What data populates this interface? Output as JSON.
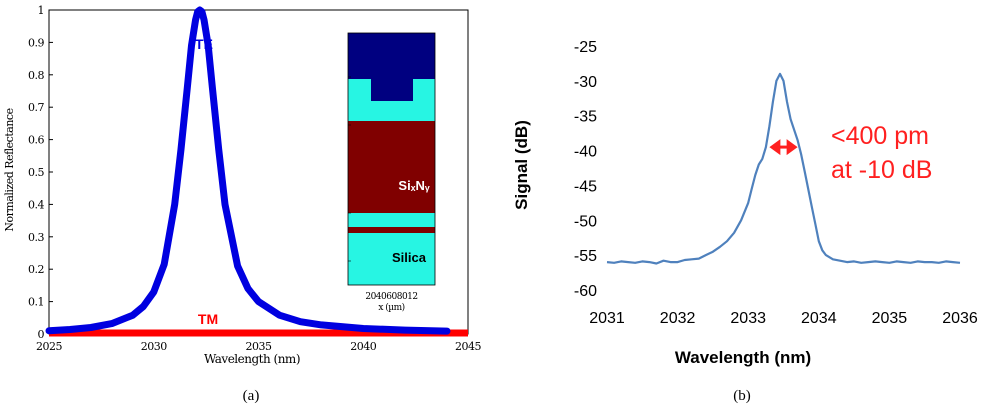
{
  "chart_data": [
    {
      "type": "line",
      "panel_caption": "(a)",
      "xlabel": "Wavelength (nm)",
      "ylabel": "Normalized Reflectance",
      "xlim": [
        2025,
        2045
      ],
      "ylim": [
        0,
        1
      ],
      "x_ticks": [
        "2025",
        "2030",
        "2035",
        "2040",
        "2045"
      ],
      "y_ticks": [
        "0",
        "0.1",
        "0.2",
        "0.3",
        "0.4",
        "0.5",
        "0.6",
        "0.7",
        "0.8",
        "0.9",
        "1"
      ],
      "peak_center": 2032.2,
      "series": [
        {
          "name": "TE",
          "color": "#0000e0",
          "x": [
            2025,
            2026,
            2027,
            2028,
            2029,
            2029.5,
            2030,
            2030.5,
            2031,
            2031.3,
            2031.6,
            2031.8,
            2032.0,
            2032.1,
            2032.2,
            2032.3,
            2032.4,
            2032.6,
            2032.8,
            2033.1,
            2033.4,
            2034,
            2034.5,
            2035,
            2036,
            2037,
            2038,
            2040,
            2042,
            2044
          ],
          "y": [
            0.01,
            0.014,
            0.02,
            0.032,
            0.058,
            0.085,
            0.13,
            0.215,
            0.4,
            0.57,
            0.76,
            0.89,
            0.97,
            0.995,
            1.0,
            0.995,
            0.97,
            0.89,
            0.76,
            0.57,
            0.4,
            0.21,
            0.14,
            0.1,
            0.058,
            0.038,
            0.028,
            0.017,
            0.012,
            0.009
          ]
        },
        {
          "name": "TM",
          "color": "#ff0000",
          "x": [
            2025,
            2045
          ],
          "y": [
            0.0,
            0.0
          ]
        }
      ],
      "inset": {
        "layers": [
          {
            "color": "#000080"
          },
          {
            "color": "#27f5e3"
          },
          {
            "color": "#800000",
            "label": "SiₓNᵧ"
          },
          {
            "color": "#27f5e3"
          },
          {
            "color": "#800000"
          },
          {
            "color": "#27f5e3",
            "label": "Silica"
          }
        ],
        "x_ticks": "2040608012",
        "xlabel": "x (µm)"
      }
    },
    {
      "type": "line",
      "panel_caption": "(b)",
      "xlabel": "Wavelength (nm)",
      "ylabel": "Signal (dB)",
      "xlim": [
        2031,
        2036
      ],
      "ylim": [
        -60,
        -25
      ],
      "x_ticks": [
        "2031",
        "2032",
        "2033",
        "2034",
        "2035",
        "2036"
      ],
      "y_ticks": [
        "-25",
        "-30",
        "-35",
        "-40",
        "-45",
        "-50",
        "-55",
        "-60"
      ],
      "annotation": {
        "line1": "<400 pm",
        "line2": "at -10 dB",
        "color": "#ff2020",
        "arrow_x": [
          2033.3,
          2033.7
        ],
        "arrow_y": -39.5
      },
      "series": [
        {
          "name": "",
          "color": "#4f81bd",
          "x": [
            2031.0,
            2031.1,
            2031.2,
            2031.3,
            2031.4,
            2031.5,
            2031.6,
            2031.7,
            2031.8,
            2031.9,
            2032.0,
            2032.1,
            2032.2,
            2032.3,
            2032.4,
            2032.5,
            2032.6,
            2032.7,
            2032.8,
            2032.9,
            2033.0,
            2033.05,
            2033.1,
            2033.15,
            2033.2,
            2033.25,
            2033.3,
            2033.35,
            2033.4,
            2033.45,
            2033.5,
            2033.55,
            2033.6,
            2033.65,
            2033.7,
            2033.75,
            2033.8,
            2033.85,
            2033.9,
            2033.95,
            2034.0,
            2034.05,
            2034.1,
            2034.2,
            2034.3,
            2034.4,
            2034.5,
            2034.6,
            2034.7,
            2034.8,
            2034.9,
            2035.0,
            2035.1,
            2035.2,
            2035.3,
            2035.4,
            2035.5,
            2035.6,
            2035.7,
            2035.8,
            2035.9,
            2036.0
          ],
          "y": [
            -56.0,
            -56.1,
            -55.9,
            -56.0,
            -56.1,
            -55.9,
            -56.0,
            -56.2,
            -55.8,
            -56.0,
            -56.0,
            -55.7,
            -55.6,
            -55.5,
            -55.0,
            -54.5,
            -53.8,
            -53.0,
            -51.8,
            -50.0,
            -47.5,
            -45.5,
            -43.5,
            -42.0,
            -41.2,
            -39.5,
            -36.5,
            -33.0,
            -30.0,
            -29.0,
            -30.0,
            -33.0,
            -35.5,
            -37.0,
            -38.5,
            -40.5,
            -43.0,
            -45.5,
            -48.0,
            -50.5,
            -53.0,
            -54.3,
            -55.0,
            -55.6,
            -55.8,
            -56.0,
            -55.9,
            -56.1,
            -56.0,
            -55.9,
            -56.0,
            -56.1,
            -55.9,
            -56.0,
            -56.1,
            -55.9,
            -56.0,
            -56.0,
            -56.1,
            -55.9,
            -56.0,
            -56.1
          ]
        }
      ]
    }
  ]
}
